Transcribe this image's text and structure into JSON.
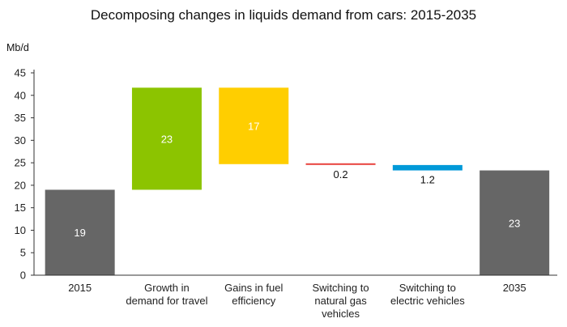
{
  "chart_data": {
    "type": "waterfall",
    "title": "Decomposing changes in liquids demand from cars: 2015-2035",
    "unit_label": "Mb/d",
    "ylim": [
      0,
      45
    ],
    "yticks": [
      0,
      5,
      10,
      15,
      20,
      25,
      30,
      35,
      40,
      45
    ],
    "grid": false,
    "bars": [
      {
        "category": [
          "2015"
        ],
        "start": 0,
        "end": 19,
        "label": "19",
        "kind": "total",
        "color": "#666666"
      },
      {
        "category": [
          "Growth in",
          "demand for travel"
        ],
        "start": 19,
        "end": 41.7,
        "label": "23",
        "kind": "increase",
        "color": "#8cc400"
      },
      {
        "category": [
          "Gains in fuel",
          "efficiency"
        ],
        "start": 41.7,
        "end": 24.7,
        "label": "17",
        "kind": "decrease",
        "color": "#ffce00"
      },
      {
        "category": [
          "Switching to",
          "natural gas",
          "vehicles"
        ],
        "start": 24.7,
        "end": 24.5,
        "label": "0.2",
        "kind": "decrease",
        "color": "#e8413c"
      },
      {
        "category": [
          "Switching to",
          "electric vehicles"
        ],
        "start": 24.5,
        "end": 23.3,
        "label": "1.2",
        "kind": "decrease",
        "color": "#0099d8"
      },
      {
        "category": [
          "2035"
        ],
        "start": 0,
        "end": 23.3,
        "label": "23",
        "kind": "total",
        "color": "#666666"
      }
    ]
  }
}
